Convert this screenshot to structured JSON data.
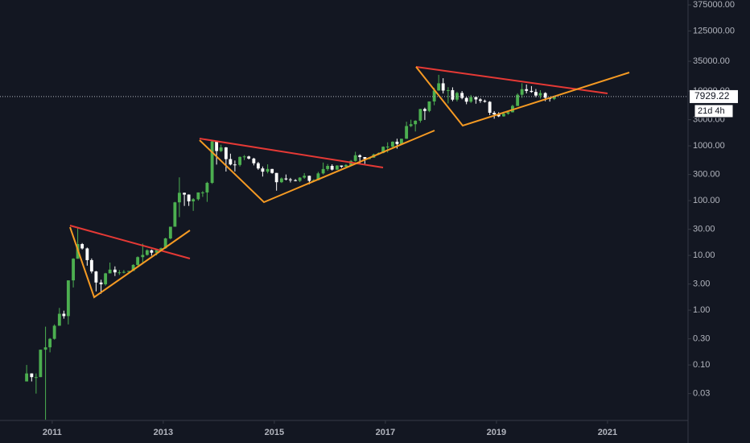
{
  "chart_data": {
    "type": "candlestick",
    "log_scale": true,
    "up_color": "#4caf50",
    "down_color": "#ffffff",
    "xlim": [
      2010.06,
      2022.45
    ],
    "xticks": [
      2011,
      2013,
      2015,
      2017,
      2019,
      2021
    ],
    "ylim": [
      0.0097,
      460000
    ],
    "yticks": [
      {
        "value": 375000,
        "label": "375000.00"
      },
      {
        "value": 125000,
        "label": "125000.00"
      },
      {
        "value": 35000,
        "label": "35000.00"
      },
      {
        "value": 10000,
        "label": "10000.00"
      },
      {
        "value": 3000,
        "label": "3000.00"
      },
      {
        "value": 1000,
        "label": "1000.00"
      },
      {
        "value": 300,
        "label": "300.00"
      },
      {
        "value": 100,
        "label": "100.00"
      },
      {
        "value": 30,
        "label": "30.00"
      },
      {
        "value": 10,
        "label": "10.00"
      },
      {
        "value": 3,
        "label": "3.00"
      },
      {
        "value": 1,
        "label": "1.00"
      },
      {
        "value": 0.3,
        "label": "0.30"
      },
      {
        "value": 0.1,
        "label": "0.10"
      },
      {
        "value": 0.03,
        "label": "0.03"
      }
    ],
    "last_price": 7929.22,
    "countdown": "21d 4h",
    "x": [
      2010.54,
      2010.63,
      2010.71,
      2010.79,
      2010.88,
      2010.96,
      2011.04,
      2011.13,
      2011.21,
      2011.29,
      2011.38,
      2011.46,
      2011.54,
      2011.63,
      2011.71,
      2011.79,
      2011.88,
      2011.96,
      2012.04,
      2012.13,
      2012.21,
      2012.29,
      2012.38,
      2012.46,
      2012.54,
      2012.63,
      2012.71,
      2012.79,
      2012.88,
      2012.96,
      2013.04,
      2013.13,
      2013.21,
      2013.29,
      2013.38,
      2013.46,
      2013.54,
      2013.63,
      2013.71,
      2013.79,
      2013.88,
      2013.96,
      2014.04,
      2014.13,
      2014.21,
      2014.29,
      2014.38,
      2014.46,
      2014.54,
      2014.63,
      2014.71,
      2014.79,
      2014.88,
      2014.96,
      2015.04,
      2015.13,
      2015.21,
      2015.29,
      2015.38,
      2015.46,
      2015.54,
      2015.63,
      2015.71,
      2015.79,
      2015.88,
      2015.96,
      2016.04,
      2016.13,
      2016.21,
      2016.29,
      2016.38,
      2016.46,
      2016.54,
      2016.63,
      2016.71,
      2016.79,
      2016.88,
      2016.96,
      2017.04,
      2017.13,
      2017.21,
      2017.29,
      2017.38,
      2017.46,
      2017.54,
      2017.63,
      2017.71,
      2017.79,
      2017.88,
      2017.96,
      2018.04,
      2018.13,
      2018.21,
      2018.29,
      2018.38,
      2018.46,
      2018.54,
      2018.63,
      2018.71,
      2018.79,
      2018.88,
      2018.96,
      2019.04,
      2019.13,
      2019.21,
      2019.29,
      2019.38,
      2019.46,
      2019.54,
      2019.63,
      2019.71,
      2019.79,
      2019.88,
      2019.96,
      2020.04
    ],
    "open": [
      0.05,
      0.07,
      0.06,
      0.06,
      0.19,
      0.21,
      0.3,
      0.52,
      0.86,
      0.78,
      3.5,
      8.7,
      16.1,
      13.4,
      8.2,
      5.1,
      3.2,
      2.97,
      4.7,
      5.5,
      4.9,
      4.9,
      5.0,
      5.2,
      6.7,
      9.3,
      10.2,
      12.4,
      11.2,
      12.6,
      13.5,
      20.4,
      33.4,
      93,
      139,
      129,
      97,
      106,
      141,
      141,
      211,
      1205,
      805,
      938,
      573,
      457,
      448,
      628,
      640,
      586,
      481,
      387,
      338,
      378,
      320,
      217,
      254,
      244,
      236,
      230,
      263,
      284,
      230,
      236,
      314,
      377,
      430,
      368,
      437,
      416,
      448,
      531,
      673,
      624,
      575,
      609,
      698,
      742,
      963,
      970,
      1190,
      1080,
      1348,
      2300,
      2480,
      2875,
      4703,
      4338,
      6468,
      10233,
      13860,
      10221,
      10397,
      6973,
      9240,
      7494,
      6404,
      7780,
      7037,
      6625,
      6371,
      4017,
      3742,
      3457,
      3854,
      4105,
      5350,
      8574,
      10817,
      10085,
      9630,
      8293,
      9199,
      7569,
      7193
    ],
    "high": [
      0.1,
      0.07,
      0.07,
      0.19,
      0.5,
      0.31,
      0.55,
      1.1,
      0.98,
      3.5,
      8.9,
      31.9,
      16.8,
      13.9,
      8.8,
      5.2,
      3.6,
      4.8,
      7.4,
      6.3,
      5.4,
      5.4,
      5.2,
      6.9,
      9.6,
      16.4,
      12.9,
      12.8,
      12.8,
      13.9,
      21.0,
      33.4,
      95.0,
      266,
      140,
      130,
      111,
      141,
      149,
      221,
      1242,
      1238,
      1050,
      950,
      720,
      540,
      640,
      680,
      660,
      605,
      510,
      420,
      460,
      380,
      320,
      265,
      300,
      260,
      247,
      268,
      318,
      287,
      246,
      335,
      495,
      465,
      460,
      442,
      439,
      465,
      550,
      780,
      700,
      625,
      620,
      720,
      760,
      980,
      1160,
      1210,
      1350,
      1350,
      2760,
      3000,
      2930,
      4740,
      4980,
      6470,
      11500,
      19800,
      17180,
      11790,
      11700,
      9750,
      10020,
      7780,
      8500,
      7800,
      7410,
      6990,
      6560,
      4310,
      4110,
      4210,
      4140,
      5640,
      9100,
      13900,
      13200,
      12330,
      10900,
      10370,
      9520,
      7750,
      8200
    ],
    "low": [
      0.05,
      0.05,
      0.03,
      0.06,
      0.01,
      0.17,
      0.29,
      0.52,
      0.7,
      0.55,
      2.6,
      8.7,
      12.8,
      6.5,
      4.7,
      2.2,
      2.0,
      2.8,
      4.7,
      4.2,
      4.4,
      4.7,
      4.9,
      5.2,
      6.5,
      7.1,
      9.9,
      9.9,
      10.0,
      12.6,
      13.2,
      19.6,
      33.4,
      50.0,
      80.0,
      80.0,
      65.0,
      100,
      117,
      95,
      202,
      455,
      770,
      340,
      440,
      340,
      420,
      550,
      565,
      440,
      365,
      275,
      315,
      310,
      152,
      210,
      234,
      215,
      225,
      218,
      250,
      199,
      225,
      235,
      300,
      350,
      355,
      365,
      397,
      412,
      437,
      515,
      465,
      470,
      566,
      606,
      680,
      730,
      755,
      915,
      890,
      1060,
      1340,
      2200,
      1830,
      2650,
      2970,
      4110,
      5520,
      10100,
      9040,
      5950,
      6530,
      6470,
      7070,
      5750,
      6080,
      5880,
      6100,
      6170,
      3650,
      3130,
      3350,
      3400,
      3700,
      4070,
      5330,
      7520,
      9070,
      9320,
      7720,
      7300,
      6520,
      6430,
      6870
    ],
    "close": [
      0.07,
      0.06,
      0.06,
      0.19,
      0.21,
      0.3,
      0.52,
      0.86,
      0.78,
      3.5,
      8.7,
      16.1,
      13.4,
      8.2,
      5.1,
      3.2,
      2.97,
      4.7,
      5.5,
      4.9,
      4.9,
      5.0,
      5.2,
      6.7,
      9.3,
      10.2,
      12.4,
      11.2,
      12.6,
      13.5,
      20.4,
      33.4,
      93,
      139,
      129,
      97,
      106,
      141,
      141,
      211,
      1205,
      805,
      938,
      573,
      457,
      448,
      628,
      640,
      586,
      481,
      387,
      338,
      378,
      320,
      217,
      254,
      244,
      236,
      230,
      263,
      284,
      230,
      236,
      314,
      377,
      430,
      368,
      437,
      416,
      448,
      531,
      673,
      624,
      575,
      609,
      698,
      742,
      963,
      970,
      1190,
      1080,
      1348,
      2300,
      2480,
      2875,
      4703,
      4338,
      6468,
      10233,
      13860,
      10221,
      10397,
      6973,
      9240,
      7494,
      6404,
      7780,
      7037,
      6625,
      6371,
      4017,
      3742,
      3457,
      3854,
      4105,
      5350,
      8574,
      10817,
      10085,
      9630,
      8293,
      9199,
      7569,
      7193,
      7929.22
    ]
  }
}
